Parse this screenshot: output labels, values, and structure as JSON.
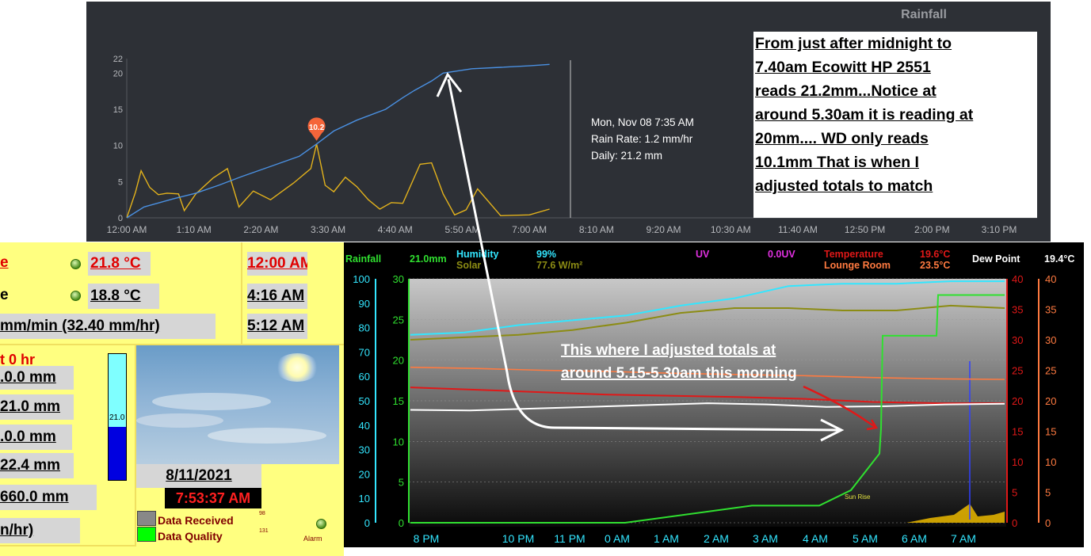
{
  "rainfall_chart": {
    "title": "Rainfall",
    "y_ticks": [
      "22",
      "20",
      "15",
      "10",
      "5",
      "0"
    ],
    "x_ticks": [
      "12:00 AM",
      "1:10 AM",
      "2:20 AM",
      "3:30 AM",
      "4:40 AM",
      "5:50 AM",
      "7:00 AM",
      "8:10 AM",
      "9:20 AM",
      "10:30 AM",
      "11:40 AM",
      "12:50 PM",
      "2:00 PM",
      "3:10 PM"
    ],
    "peak_marker": "10.2",
    "tooltip": {
      "line1": "Mon, Nov 08 7:35 AM",
      "line2": "Rain Rate: 1.2 mm/hr",
      "line3": "Daily: 21.2 mm"
    },
    "colors": {
      "daily": "#4a90e2",
      "rate": "#e3b21c",
      "marker": "#f5653a",
      "background": "#2d3036"
    }
  },
  "chart_data": [
    {
      "type": "line",
      "title": "Rainfall",
      "x_range": [
        "12:00 AM",
        "3:10 PM"
      ],
      "ylim": [
        0,
        22
      ],
      "series": [
        {
          "values_x_hours": [
            0,
            0.3,
            0.8,
            1.2,
            1.6,
            2.0,
            2.5,
            3.0,
            3.3,
            3.6,
            4.0,
            4.5,
            4.8,
            5.0,
            5.3,
            5.5,
            6.0,
            6.5,
            7.0,
            7.35
          ],
          "values": [
            0,
            1.5,
            2.6,
            3.4,
            4.5,
            5.7,
            7.1,
            8.5,
            10.2,
            12,
            13.5,
            15,
            16.6,
            17.6,
            18.9,
            20,
            20.6,
            20.8,
            21.0,
            21.2
          ]
        },
        {
          "values_x_hours": [
            0,
            0.15,
            0.25,
            0.4,
            0.55,
            0.7,
            0.9,
            1.0,
            1.2,
            1.5,
            1.75,
            1.95,
            2.2,
            2.5,
            2.9,
            3.2,
            3.3,
            3.45,
            3.6,
            3.8,
            4.0,
            4.2,
            4.4,
            4.6,
            4.8,
            5.1,
            5.3,
            5.5,
            5.7,
            5.9,
            6.1,
            6.5,
            7.0,
            7.35
          ],
          "values": [
            0,
            3.5,
            6.5,
            4.2,
            3.2,
            3.4,
            3.3,
            1.0,
            3.3,
            5.5,
            6.8,
            1.5,
            3.7,
            2.5,
            4.8,
            6.8,
            10.2,
            4.5,
            3.6,
            5.6,
            4.3,
            2.5,
            1.2,
            2.1,
            2.0,
            7.4,
            7.6,
            3.3,
            0.4,
            1.1,
            4.0,
            0.3,
            0.4,
            1.2
          ]
        }
      ]
    },
    {
      "type": "line",
      "x_ticks": [
        "8 PM",
        "10 PM",
        "11 PM",
        "0 AM",
        "1 AM",
        "2 AM",
        "3 AM",
        "4 AM",
        "5 AM",
        "6 AM",
        "7 AM"
      ],
      "y_left_humidity": [
        "100",
        "90",
        "80",
        "70",
        "60",
        "50",
        "40",
        "30",
        "20",
        "10",
        "0"
      ],
      "y_left_rain": [
        "30",
        "25",
        "20",
        "15",
        "10",
        "5",
        "0"
      ],
      "y_right": [
        "40",
        "35",
        "30",
        "25",
        "20",
        "15",
        "10",
        "5",
        "0"
      ],
      "series": [
        {
          "values": [
            77,
            78,
            81,
            83,
            85,
            89,
            92,
            97,
            98,
            98,
            99,
            99
          ]
        },
        {
          "values": [
            75,
            76,
            77,
            79,
            82,
            86,
            88,
            88,
            87,
            87,
            89,
            88
          ]
        },
        {
          "values": [
            25.5,
            25.3,
            25,
            24.8,
            24.5,
            24.3,
            24.1,
            23.8,
            23.6,
            23.5
          ]
        },
        {
          "values": [
            22.2,
            21.8,
            21.4,
            21,
            20.8,
            20.6,
            20.3,
            19.8,
            19.6,
            19.6
          ]
        },
        {
          "values": [
            18.5,
            18.4,
            18.7,
            19.0,
            19.3,
            19.6,
            19.4,
            19.0,
            19.1,
            19.4,
            19.5
          ]
        },
        {
          "values": [
            0,
            0,
            0,
            0,
            2.1,
            2.1,
            2.1,
            4.0,
            6.5,
            8.5,
            11.6,
            23,
            23,
            28,
            28
          ]
        }
      ]
    }
  ],
  "annotation_note": {
    "lines": [
      "From just after midnight to",
      "7.40am Ecowitt HP 2551",
      "reads 21.2mm...Notice at",
      "around 5.30am  it is reading at",
      "20mm.... WD only reads",
      "10.1mm That is when I",
      "adjusted totals to match"
    ]
  },
  "left_panel": {
    "row1_label_fragment": "e",
    "row1_value": "21.8 °C",
    "row2_label_fragment": "e",
    "row2_value": "18.8 °C",
    "rate_value": "mm/min (32.40 mm/hr)",
    "times": [
      "12:00 AM",
      "4:16 AM",
      "5:12 AM"
    ],
    "rain_header_fragment": "t 0 hr",
    "rain_values": [
      ".0.0 mm",
      "21.0 mm",
      ".0.0 mm",
      "22.4 mm",
      "660.0 mm"
    ],
    "rate_fragment": "n/hr)",
    "gauge_label": "21.0",
    "date": "8/11/2021",
    "time": "7:53:37 AM",
    "data_received_label": "Data Received",
    "data_received_num": "98",
    "data_quality_label": "Data Quality",
    "data_quality_num": "131",
    "alarm_label": "Alarm"
  },
  "wd_graph": {
    "rainfall_label": "Rainfall",
    "rainfall_value": "21.0mm",
    "humidity_label": "Humidity",
    "humidity_value": "99%",
    "solar_label": "Solar",
    "solar_value": "77.6 W/m²",
    "uv_label": "UV",
    "uv_value": "0.0UV",
    "temp_label": "Temperature",
    "temp_value": "19.6°C",
    "lounge_label": "Lounge Room",
    "lounge_value": "23.5°C",
    "dew_label": "Dew Point",
    "dew_value": "19.4°C",
    "sunrise_label": "Sun Rise",
    "annotation_line1": "This where I adjusted totals at",
    "annotation_line2": "around 5.15-5.30am this morning",
    "colors": {
      "humidity": "#33e6ff",
      "solar": "#8c8c14",
      "temp": "#e01818",
      "lounge": "#ff7a40",
      "dew": "#ffffff",
      "rain": "#30e030"
    }
  }
}
